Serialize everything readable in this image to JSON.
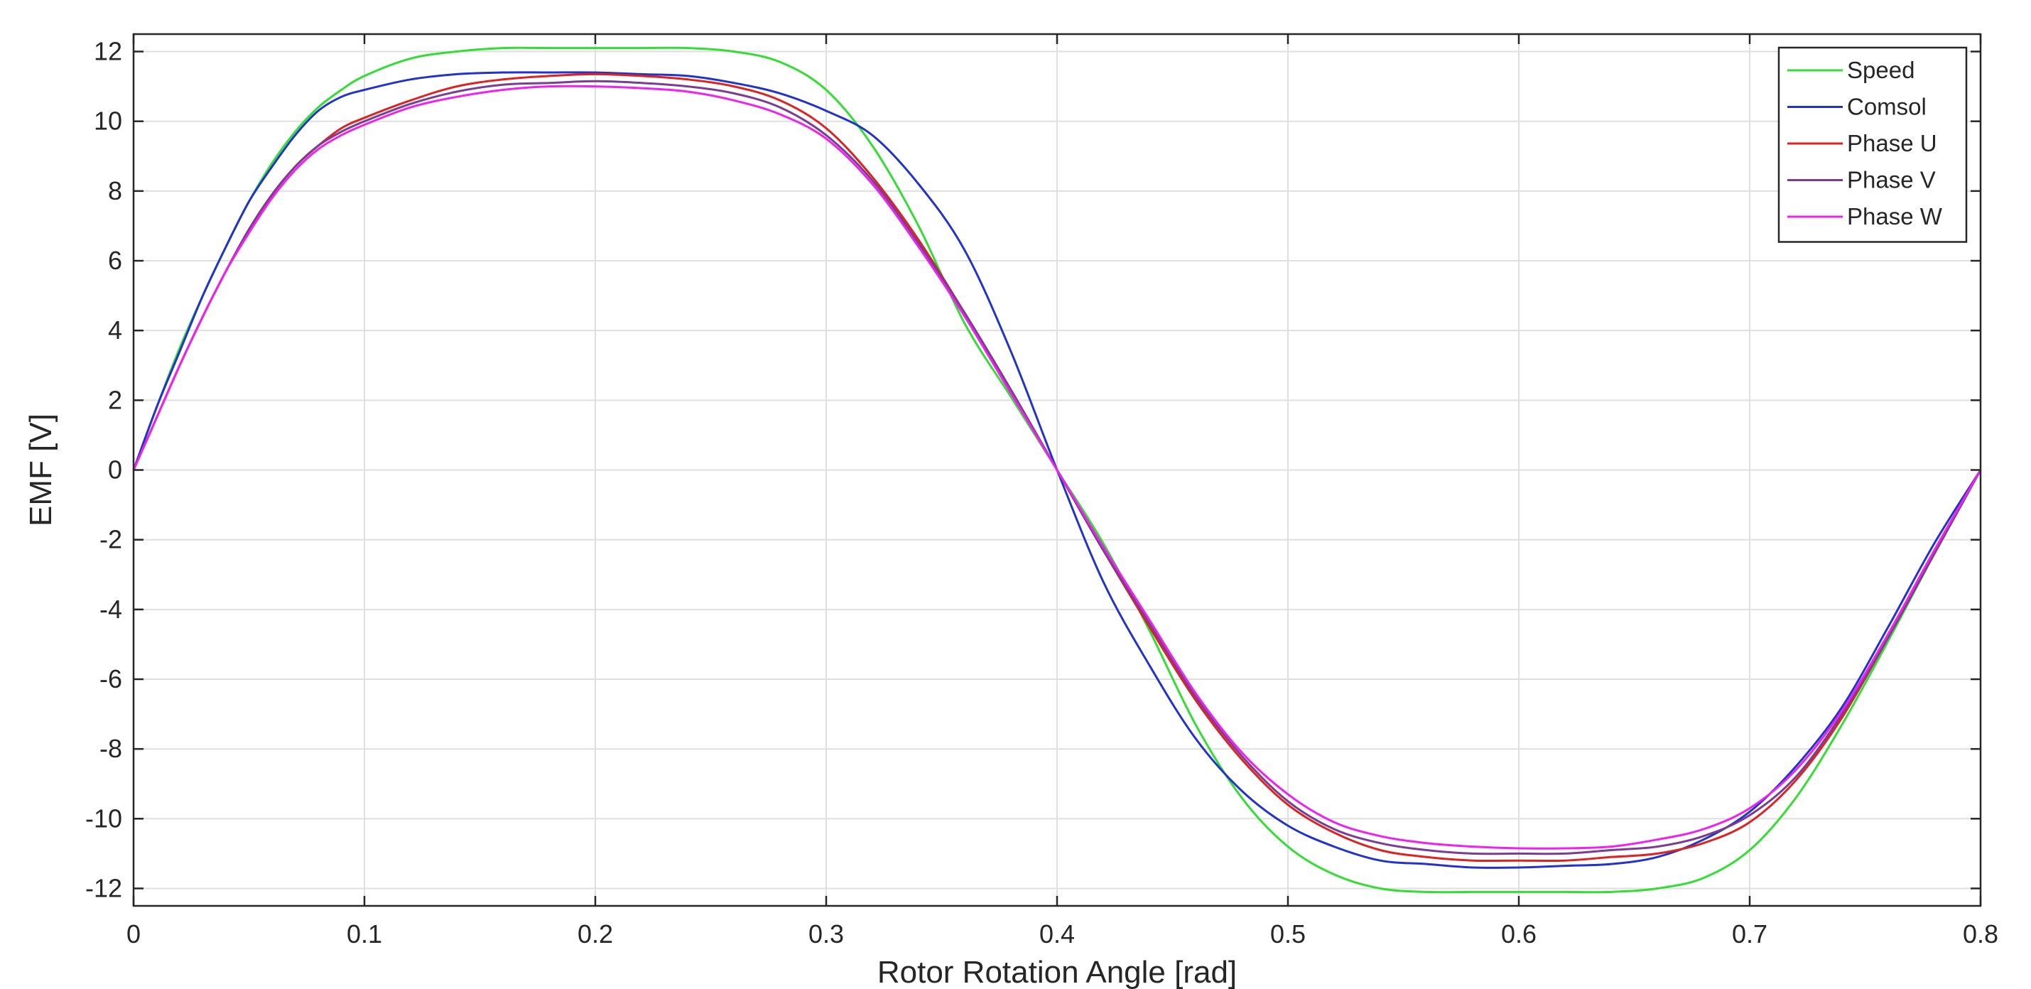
{
  "chart_data": {
    "type": "line",
    "xlabel": "Rotor Rotation Angle [rad]",
    "ylabel": "EMF [V]",
    "xlim": [
      0,
      0.8
    ],
    "ylim": [
      -12.5,
      12.5
    ],
    "xticks": [
      0,
      0.1,
      0.2,
      0.3,
      0.4,
      0.5,
      0.6,
      0.7,
      0.8
    ],
    "xtick_labels": [
      "0",
      "0.1",
      "0.2",
      "0.3",
      "0.4",
      "0.5",
      "0.6",
      "0.7",
      "0.8"
    ],
    "yticks": [
      -12,
      -10,
      -8,
      -6,
      -4,
      -2,
      0,
      2,
      4,
      6,
      8,
      10,
      12
    ],
    "ytick_labels": [
      "-12",
      "-10",
      "-8",
      "-6",
      "-4",
      "-2",
      "0",
      "2",
      "4",
      "6",
      "8",
      "10",
      "12"
    ],
    "grid": true,
    "box": true,
    "legend_position": "top-right",
    "series": [
      {
        "name": "Speed",
        "color": "#33dd33",
        "x": [
          0,
          0.01,
          0.02,
          0.03,
          0.04,
          0.05,
          0.06,
          0.07,
          0.08,
          0.09,
          0.1,
          0.12,
          0.14,
          0.16,
          0.18,
          0.2,
          0.22,
          0.24,
          0.26,
          0.28,
          0.3,
          0.32,
          0.34,
          0.36,
          0.38,
          0.4,
          0.42,
          0.44,
          0.46,
          0.48,
          0.5,
          0.52,
          0.54,
          0.56,
          0.58,
          0.6,
          0.62,
          0.64,
          0.66,
          0.68,
          0.7,
          0.72,
          0.74,
          0.76,
          0.78,
          0.8
        ],
        "y": [
          0,
          1.8,
          3.5,
          5.0,
          6.4,
          7.7,
          8.8,
          9.7,
          10.4,
          10.9,
          11.3,
          11.8,
          12.0,
          12.1,
          12.1,
          12.1,
          12.1,
          12.1,
          12.0,
          11.7,
          10.9,
          9.3,
          7.0,
          4.2,
          2.1,
          0,
          -2.1,
          -4.6,
          -7.3,
          -9.4,
          -10.8,
          -11.6,
          -12.0,
          -12.1,
          -12.1,
          -12.1,
          -12.1,
          -12.1,
          -12.0,
          -11.7,
          -10.9,
          -9.4,
          -7.3,
          -4.9,
          -2.4,
          0
        ]
      },
      {
        "name": "Comsol",
        "color": "#2233cc",
        "x": [
          0,
          0.01,
          0.02,
          0.03,
          0.04,
          0.05,
          0.06,
          0.07,
          0.08,
          0.09,
          0.1,
          0.12,
          0.14,
          0.16,
          0.18,
          0.2,
          0.22,
          0.24,
          0.26,
          0.28,
          0.3,
          0.32,
          0.34,
          0.36,
          0.38,
          0.4,
          0.42,
          0.44,
          0.46,
          0.48,
          0.5,
          0.52,
          0.54,
          0.56,
          0.58,
          0.6,
          0.62,
          0.64,
          0.66,
          0.68,
          0.7,
          0.72,
          0.74,
          0.76,
          0.78,
          0.8
        ],
        "y": [
          0,
          1.8,
          3.4,
          5.0,
          6.4,
          7.7,
          8.7,
          9.6,
          10.3,
          10.7,
          10.9,
          11.2,
          11.35,
          11.4,
          11.4,
          11.4,
          11.35,
          11.3,
          11.1,
          10.8,
          10.3,
          9.6,
          8.2,
          6.3,
          3.4,
          0,
          -3.2,
          -5.6,
          -7.7,
          -9.2,
          -10.2,
          -10.8,
          -11.2,
          -11.3,
          -11.4,
          -11.4,
          -11.35,
          -11.3,
          -11.1,
          -10.6,
          -9.8,
          -8.5,
          -6.8,
          -4.5,
          -2.1,
          0
        ]
      },
      {
        "name": "Phase U",
        "color": "#dd2222",
        "x": [
          0,
          0.01,
          0.02,
          0.03,
          0.04,
          0.05,
          0.06,
          0.07,
          0.08,
          0.09,
          0.1,
          0.12,
          0.14,
          0.16,
          0.18,
          0.2,
          0.22,
          0.24,
          0.26,
          0.28,
          0.3,
          0.32,
          0.34,
          0.36,
          0.38,
          0.4,
          0.42,
          0.44,
          0.46,
          0.48,
          0.5,
          0.52,
          0.54,
          0.56,
          0.58,
          0.6,
          0.62,
          0.64,
          0.66,
          0.68,
          0.7,
          0.72,
          0.74,
          0.76,
          0.78,
          0.8
        ],
        "y": [
          0,
          1.5,
          3.0,
          4.4,
          5.7,
          6.9,
          7.9,
          8.7,
          9.3,
          9.8,
          10.1,
          10.6,
          11.0,
          11.2,
          11.3,
          11.35,
          11.3,
          11.2,
          11.0,
          10.6,
          9.8,
          8.4,
          6.6,
          4.5,
          2.3,
          0,
          -2.3,
          -4.5,
          -6.6,
          -8.3,
          -9.6,
          -10.4,
          -10.9,
          -11.1,
          -11.2,
          -11.2,
          -11.2,
          -11.1,
          -11.0,
          -10.7,
          -10.1,
          -8.9,
          -7.1,
          -4.8,
          -2.4,
          0
        ]
      },
      {
        "name": "Phase V",
        "color": "#7a3d8f",
        "x": [
          0,
          0.01,
          0.02,
          0.03,
          0.04,
          0.05,
          0.06,
          0.07,
          0.08,
          0.09,
          0.1,
          0.12,
          0.14,
          0.16,
          0.18,
          0.2,
          0.22,
          0.24,
          0.26,
          0.28,
          0.3,
          0.32,
          0.34,
          0.36,
          0.38,
          0.4,
          0.42,
          0.44,
          0.46,
          0.48,
          0.5,
          0.52,
          0.54,
          0.56,
          0.58,
          0.6,
          0.62,
          0.64,
          0.66,
          0.68,
          0.7,
          0.72,
          0.74,
          0.76,
          0.78,
          0.8
        ],
        "y": [
          0,
          1.5,
          3.0,
          4.4,
          5.7,
          6.9,
          7.9,
          8.7,
          9.3,
          9.7,
          10.0,
          10.5,
          10.85,
          11.05,
          11.1,
          11.15,
          11.1,
          11.0,
          10.8,
          10.4,
          9.6,
          8.3,
          6.5,
          4.5,
          2.3,
          0,
          -2.3,
          -4.4,
          -6.5,
          -8.2,
          -9.5,
          -10.3,
          -10.7,
          -10.9,
          -11.0,
          -11.0,
          -11.0,
          -10.9,
          -10.8,
          -10.5,
          -9.9,
          -8.8,
          -7.0,
          -4.8,
          -2.4,
          0
        ]
      },
      {
        "name": "Phase W",
        "color": "#ee22ee",
        "x": [
          0,
          0.01,
          0.02,
          0.03,
          0.04,
          0.05,
          0.06,
          0.07,
          0.08,
          0.09,
          0.1,
          0.12,
          0.14,
          0.16,
          0.18,
          0.2,
          0.22,
          0.24,
          0.26,
          0.28,
          0.3,
          0.32,
          0.34,
          0.36,
          0.38,
          0.4,
          0.42,
          0.44,
          0.46,
          0.48,
          0.5,
          0.52,
          0.54,
          0.56,
          0.58,
          0.6,
          0.62,
          0.64,
          0.66,
          0.68,
          0.7,
          0.72,
          0.74,
          0.76,
          0.78,
          0.8
        ],
        "y": [
          0,
          1.5,
          3.0,
          4.4,
          5.7,
          6.8,
          7.8,
          8.6,
          9.2,
          9.6,
          9.9,
          10.4,
          10.7,
          10.9,
          11.0,
          11.0,
          10.95,
          10.85,
          10.6,
          10.2,
          9.5,
          8.2,
          6.4,
          4.4,
          2.2,
          0,
          -2.2,
          -4.3,
          -6.4,
          -8.1,
          -9.3,
          -10.1,
          -10.5,
          -10.7,
          -10.8,
          -10.85,
          -10.85,
          -10.8,
          -10.6,
          -10.3,
          -9.7,
          -8.6,
          -6.9,
          -4.7,
          -2.3,
          0
        ]
      }
    ]
  }
}
